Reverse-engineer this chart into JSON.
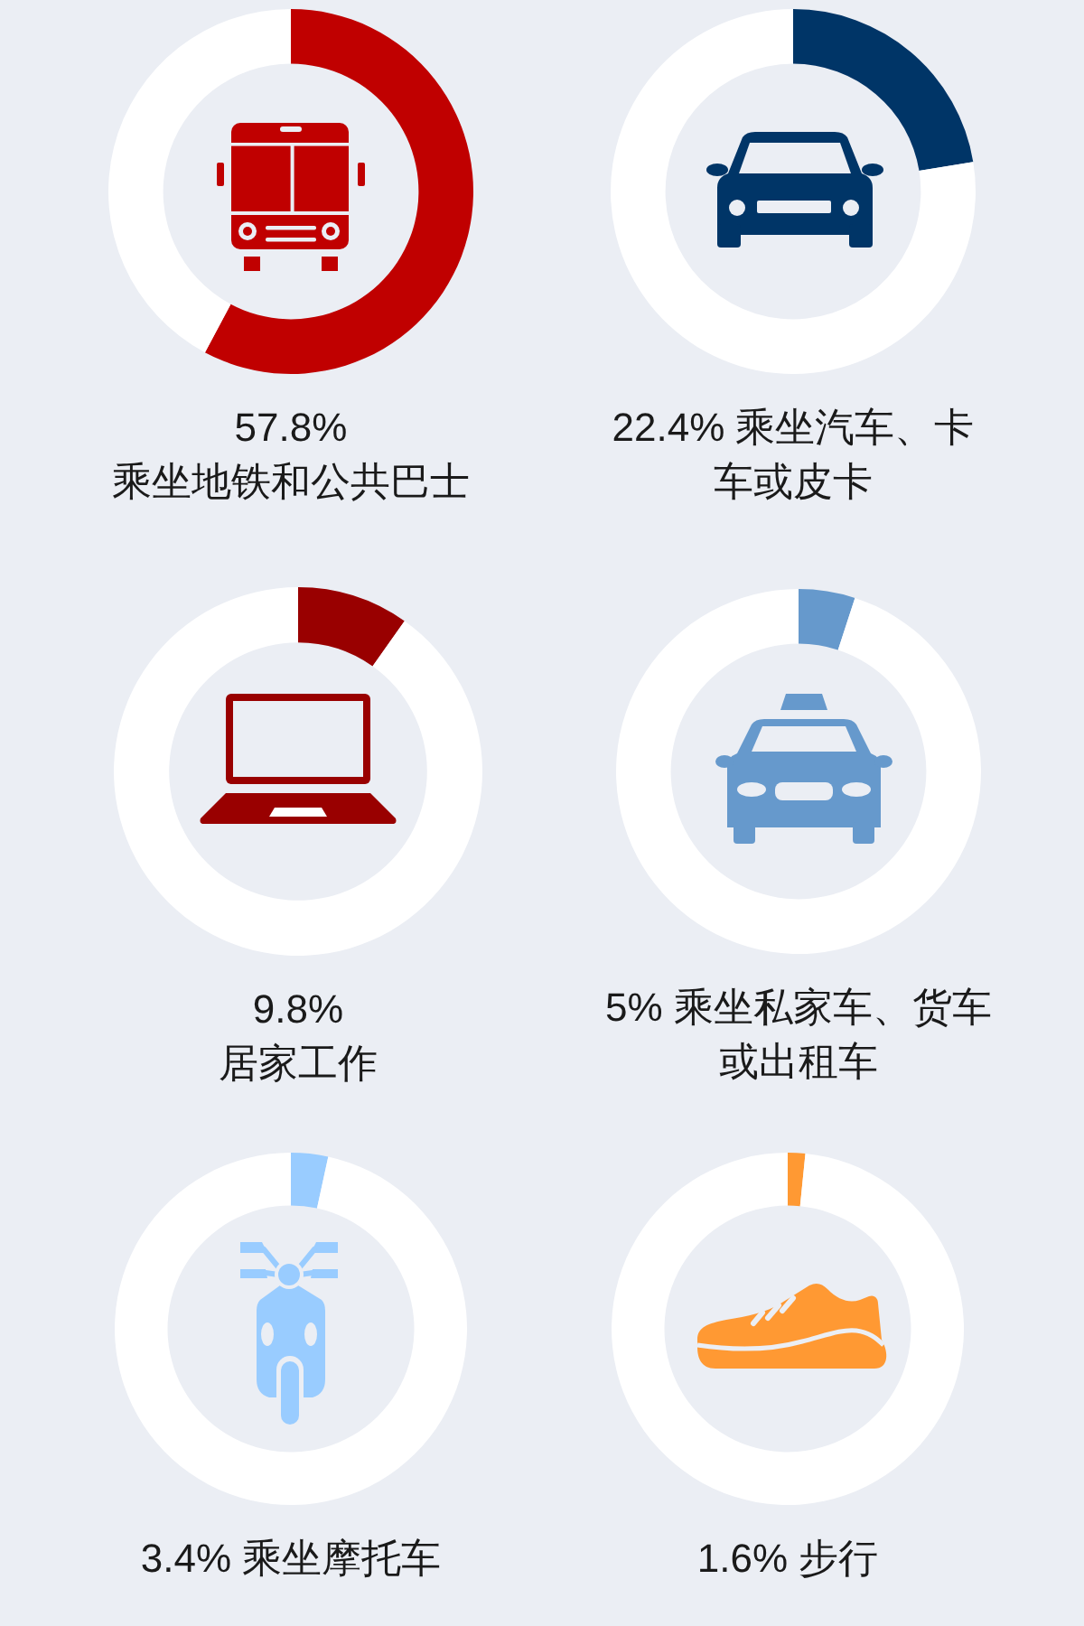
{
  "chart_data": [
    {
      "type": "donut",
      "title": "57.8% 乘坐地铁和公共巴士",
      "categories": [
        null,
        null
      ],
      "values": [
        57.8,
        42.2
      ],
      "colors": [
        "#c00000",
        "#ffffff"
      ]
    },
    {
      "type": "donut",
      "title": "22.4% 乘坐汽车、卡车或皮卡",
      "categories": [
        null,
        null
      ],
      "values": [
        22.4,
        77.6
      ],
      "colors": [
        "#003567",
        "#ffffff"
      ]
    },
    {
      "type": "donut",
      "title": "9.8% 居家工作",
      "categories": [
        null,
        null
      ],
      "values": [
        9.8,
        90.2
      ],
      "colors": [
        "#990000",
        "#ffffff"
      ]
    },
    {
      "type": "donut",
      "title": "5% 乘坐私家车、货车或出租车",
      "categories": [
        null,
        null
      ],
      "values": [
        5,
        95
      ],
      "colors": [
        "#6699cc",
        "#ffffff"
      ]
    },
    {
      "type": "donut",
      "title": "3.4% 乘坐摩托车",
      "categories": [
        null,
        null
      ],
      "values": [
        3.4,
        96.6
      ],
      "colors": [
        "#99ccff",
        "#ffffff"
      ]
    },
    {
      "type": "donut",
      "title": "1.6% 步行",
      "categories": [
        null,
        null
      ],
      "values": [
        1.6,
        98.4
      ],
      "colors": [
        "#ff9933",
        "#ffffff"
      ]
    }
  ]
}
